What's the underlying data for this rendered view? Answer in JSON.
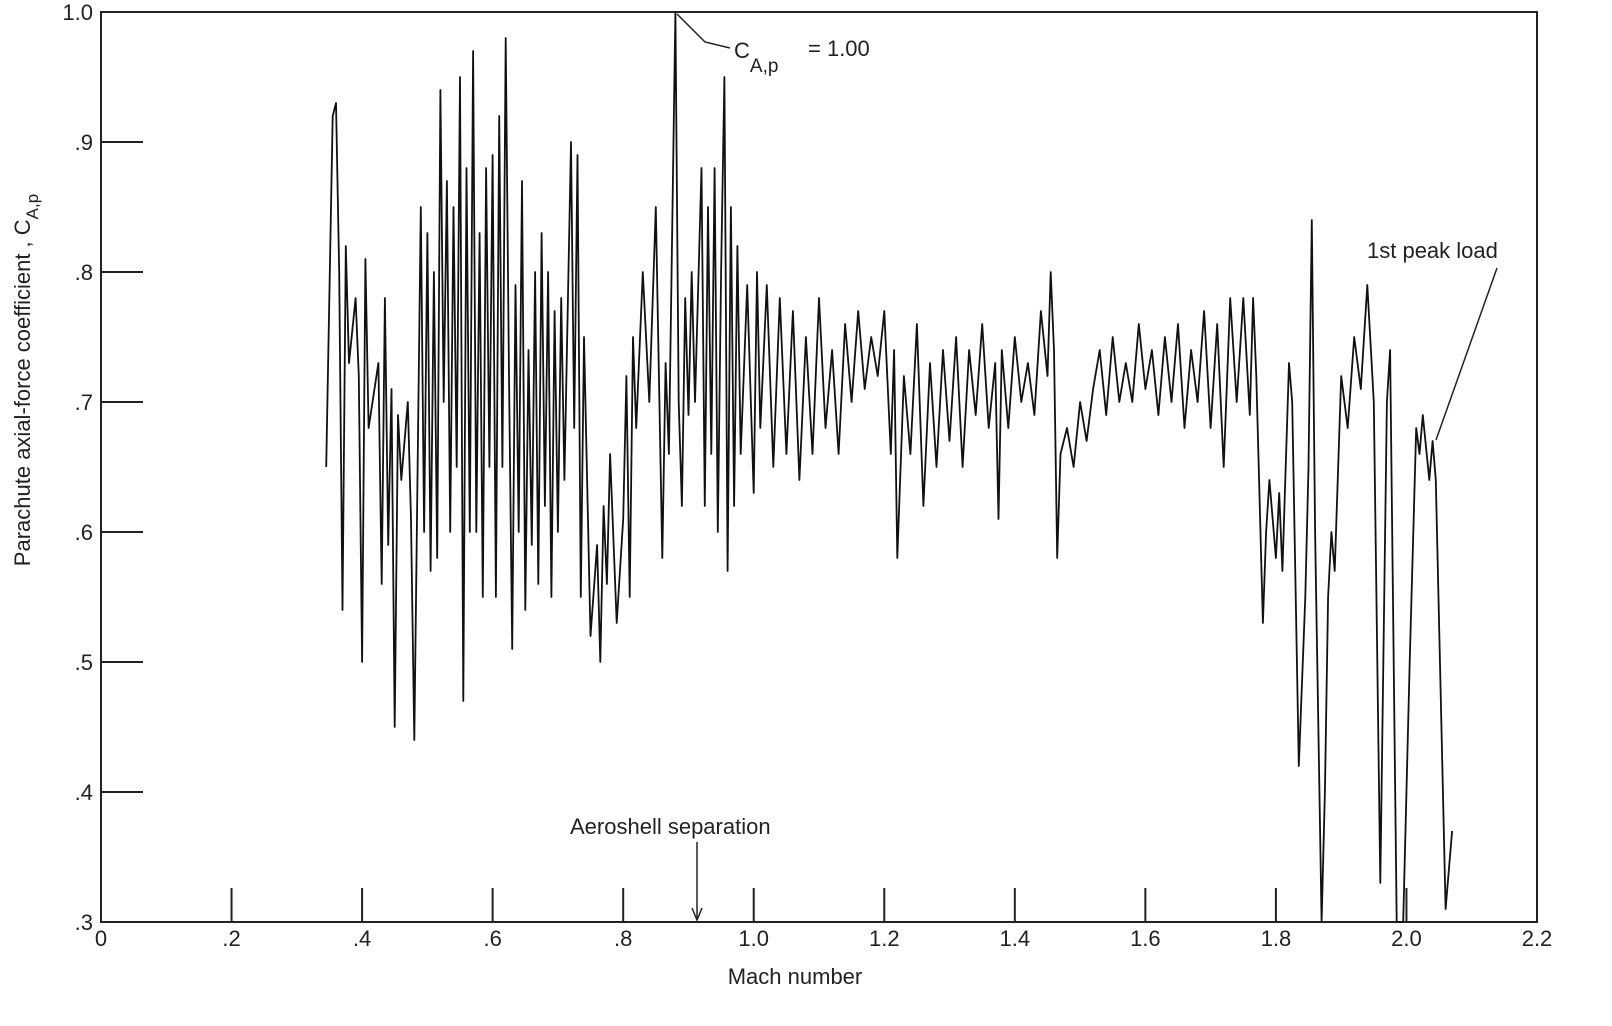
{
  "chart_data": {
    "type": "line",
    "xlabel": "Mach number",
    "ylabel": "Parachute axial-force coefficient , C",
    "ylabel_subscript": "A,p",
    "annotations": {
      "peak_symbol": "C",
      "peak_subscript": "A,p",
      "peak_value": "= 1.00",
      "separation": "Aeroshell separation",
      "first_peak": "1st peak load"
    },
    "color": "#111111",
    "xlim": [
      0,
      2.2
    ],
    "ylim": [
      0.3,
      1.0
    ],
    "xticks": [
      0,
      {
        "value": 0.2,
        "label": ".2"
      },
      {
        "value": 0.4,
        "label": ".4"
      },
      {
        "value": 0.6,
        "label": ".6"
      },
      {
        "value": 0.8,
        "label": ".8"
      },
      {
        "value": 1.0,
        "label": "1.0"
      },
      1.2,
      1.4,
      1.6,
      1.8,
      {
        "value": 2.0,
        "label": "2.0"
      },
      2.2
    ],
    "yticks": [
      {
        "value": 0.3,
        "label": ".3"
      },
      {
        "value": 0.4,
        "label": ".4"
      },
      {
        "value": 0.5,
        "label": ".5"
      },
      {
        "value": 0.6,
        "label": ".6"
      },
      {
        "value": 0.7,
        "label": ".7"
      },
      {
        "value": 0.8,
        "label": ".8"
      },
      {
        "value": 0.9,
        "label": ".9"
      },
      {
        "value": 1.0,
        "label": "1.0"
      }
    ],
    "x": [
      0.345,
      0.355,
      0.36,
      0.365,
      0.37,
      0.375,
      0.38,
      0.39,
      0.395,
      0.4,
      0.405,
      0.41,
      0.425,
      0.43,
      0.435,
      0.44,
      0.445,
      0.45,
      0.455,
      0.46,
      0.47,
      0.475,
      0.48,
      0.49,
      0.495,
      0.5,
      0.505,
      0.51,
      0.515,
      0.52,
      0.525,
      0.53,
      0.535,
      0.54,
      0.545,
      0.55,
      0.555,
      0.56,
      0.565,
      0.57,
      0.575,
      0.58,
      0.585,
      0.59,
      0.595,
      0.6,
      0.605,
      0.61,
      0.615,
      0.62,
      0.625,
      0.63,
      0.635,
      0.64,
      0.645,
      0.65,
      0.655,
      0.66,
      0.665,
      0.67,
      0.675,
      0.68,
      0.685,
      0.69,
      0.695,
      0.7,
      0.705,
      0.71,
      0.72,
      0.725,
      0.73,
      0.735,
      0.74,
      0.75,
      0.76,
      0.765,
      0.77,
      0.775,
      0.78,
      0.79,
      0.8,
      0.805,
      0.81,
      0.815,
      0.82,
      0.83,
      0.84,
      0.85,
      0.86,
      0.865,
      0.87,
      0.88,
      0.885,
      0.89,
      0.895,
      0.9,
      0.905,
      0.91,
      0.92,
      0.925,
      0.93,
      0.935,
      0.94,
      0.945,
      0.95,
      0.955,
      0.96,
      0.965,
      0.97,
      0.975,
      0.98,
      0.99,
      1.0,
      1.005,
      1.01,
      1.02,
      1.03,
      1.04,
      1.05,
      1.06,
      1.07,
      1.08,
      1.09,
      1.1,
      1.11,
      1.12,
      1.13,
      1.14,
      1.15,
      1.16,
      1.17,
      1.18,
      1.19,
      1.2,
      1.21,
      1.215,
      1.22,
      1.23,
      1.24,
      1.25,
      1.26,
      1.27,
      1.28,
      1.29,
      1.3,
      1.31,
      1.32,
      1.33,
      1.34,
      1.35,
      1.36,
      1.37,
      1.375,
      1.38,
      1.39,
      1.4,
      1.41,
      1.42,
      1.43,
      1.44,
      1.45,
      1.455,
      1.46,
      1.465,
      1.47,
      1.48,
      1.49,
      1.5,
      1.51,
      1.52,
      1.53,
      1.54,
      1.55,
      1.56,
      1.57,
      1.58,
      1.59,
      1.6,
      1.61,
      1.62,
      1.63,
      1.64,
      1.65,
      1.66,
      1.67,
      1.68,
      1.69,
      1.7,
      1.71,
      1.72,
      1.73,
      1.74,
      1.75,
      1.76,
      1.765,
      1.77,
      1.78,
      1.785,
      1.79,
      1.8,
      1.805,
      1.81,
      1.82,
      1.825,
      1.835,
      1.845,
      1.85,
      1.855,
      1.86,
      1.87,
      1.875,
      1.88,
      1.885,
      1.89,
      1.9,
      1.91,
      1.92,
      1.93,
      1.94,
      1.95,
      1.96,
      1.97,
      1.975,
      1.985,
      1.995,
      2.005,
      2.015,
      2.02,
      2.025,
      2.035,
      2.04,
      2.045,
      2.06,
      2.07
    ],
    "values": [
      0.65,
      0.92,
      0.93,
      0.8,
      0.54,
      0.82,
      0.73,
      0.78,
      0.72,
      0.5,
      0.81,
      0.68,
      0.73,
      0.56,
      0.78,
      0.59,
      0.71,
      0.45,
      0.69,
      0.64,
      0.7,
      0.61,
      0.44,
      0.85,
      0.6,
      0.83,
      0.57,
      0.8,
      0.58,
      0.94,
      0.7,
      0.87,
      0.6,
      0.85,
      0.65,
      0.95,
      0.47,
      0.88,
      0.6,
      0.97,
      0.6,
      0.83,
      0.55,
      0.88,
      0.65,
      0.89,
      0.55,
      0.92,
      0.65,
      0.98,
      0.72,
      0.51,
      0.79,
      0.6,
      0.87,
      0.54,
      0.74,
      0.59,
      0.8,
      0.56,
      0.83,
      0.62,
      0.8,
      0.55,
      0.77,
      0.6,
      0.78,
      0.64,
      0.9,
      0.68,
      0.89,
      0.55,
      0.75,
      0.52,
      0.59,
      0.5,
      0.62,
      0.56,
      0.66,
      0.53,
      0.61,
      0.72,
      0.55,
      0.75,
      0.68,
      0.8,
      0.7,
      0.85,
      0.58,
      0.73,
      0.66,
      1.0,
      0.7,
      0.62,
      0.78,
      0.69,
      0.8,
      0.7,
      0.88,
      0.62,
      0.85,
      0.66,
      0.88,
      0.6,
      0.8,
      0.95,
      0.57,
      0.85,
      0.62,
      0.82,
      0.66,
      0.79,
      0.63,
      0.8,
      0.68,
      0.79,
      0.65,
      0.78,
      0.66,
      0.77,
      0.64,
      0.75,
      0.66,
      0.78,
      0.68,
      0.74,
      0.66,
      0.76,
      0.7,
      0.77,
      0.71,
      0.75,
      0.72,
      0.77,
      0.66,
      0.74,
      0.58,
      0.72,
      0.66,
      0.76,
      0.62,
      0.73,
      0.65,
      0.74,
      0.67,
      0.75,
      0.65,
      0.74,
      0.69,
      0.76,
      0.68,
      0.73,
      0.61,
      0.74,
      0.68,
      0.75,
      0.7,
      0.73,
      0.69,
      0.77,
      0.72,
      0.8,
      0.74,
      0.58,
      0.66,
      0.68,
      0.65,
      0.7,
      0.67,
      0.71,
      0.74,
      0.69,
      0.75,
      0.7,
      0.73,
      0.7,
      0.76,
      0.71,
      0.74,
      0.69,
      0.75,
      0.7,
      0.76,
      0.68,
      0.74,
      0.7,
      0.77,
      0.68,
      0.76,
      0.65,
      0.78,
      0.7,
      0.78,
      0.69,
      0.78,
      0.72,
      0.53,
      0.6,
      0.64,
      0.58,
      0.63,
      0.57,
      0.73,
      0.7,
      0.42,
      0.55,
      0.65,
      0.84,
      0.6,
      0.3,
      0.4,
      0.55,
      0.6,
      0.57,
      0.72,
      0.68,
      0.75,
      0.71,
      0.79,
      0.7,
      0.33,
      0.7,
      0.74,
      0.3,
      0.3,
      0.5,
      0.68,
      0.66,
      0.69,
      0.64,
      0.67,
      0.64,
      0.31,
      0.37
    ]
  }
}
